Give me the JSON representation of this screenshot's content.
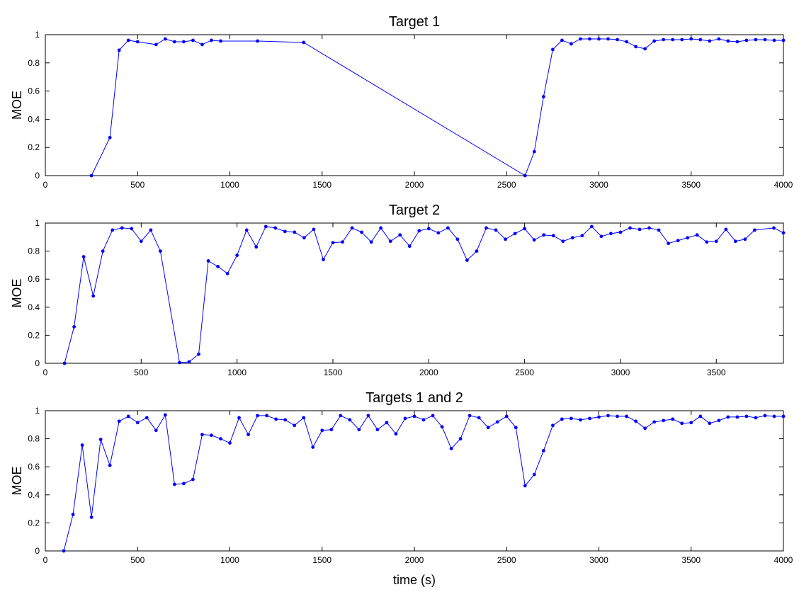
{
  "figure": {
    "xlabel": "time (s)"
  },
  "chart_data": [
    {
      "type": "line",
      "title": "Target 1",
      "ylabel": "MOE",
      "xlabel": "",
      "xlim": [
        0,
        4000
      ],
      "ylim": [
        0,
        1
      ],
      "xticks": [
        0,
        500,
        1000,
        1500,
        2000,
        2500,
        3000,
        3500,
        4000
      ],
      "yticks": [
        0,
        0.2,
        0.4,
        0.6,
        0.8,
        1
      ],
      "color": "#0000ff",
      "series": [
        {
          "x": [
            250,
            350,
            400,
            450,
            500,
            600,
            650,
            700,
            750,
            800,
            850,
            900,
            950,
            1150,
            1400,
            2600,
            2650,
            2700,
            2750,
            2800,
            2850,
            2900,
            2950,
            3000,
            3050,
            3100,
            3150,
            3200,
            3250,
            3300,
            3350,
            3400,
            3450,
            3500,
            3550,
            3600,
            3650,
            3700,
            3750,
            3800,
            3850,
            3900,
            3950,
            4000
          ],
          "y": [
            0.0,
            0.27,
            0.89,
            0.96,
            0.95,
            0.93,
            0.97,
            0.95,
            0.95,
            0.96,
            0.93,
            0.96,
            0.955,
            0.955,
            0.945,
            0.0,
            0.17,
            0.56,
            0.895,
            0.96,
            0.935,
            0.97,
            0.97,
            0.97,
            0.97,
            0.965,
            0.95,
            0.915,
            0.9,
            0.955,
            0.965,
            0.965,
            0.965,
            0.97,
            0.965,
            0.955,
            0.97,
            0.955,
            0.95,
            0.96,
            0.965,
            0.965,
            0.96,
            0.96
          ]
        }
      ]
    },
    {
      "type": "line",
      "title": "Target 2",
      "ylabel": "MOE",
      "xlabel": "",
      "xlim": [
        0,
        3850
      ],
      "ylim": [
        0,
        1
      ],
      "xticks": [
        0,
        500,
        1000,
        1500,
        2000,
        2500,
        3000,
        3500
      ],
      "yticks": [
        0,
        0.2,
        0.4,
        0.6,
        0.8,
        1
      ],
      "color": "#0000ff",
      "series": [
        {
          "x": [
            100,
            150,
            200,
            250,
            300,
            350,
            400,
            450,
            500,
            550,
            600,
            700,
            750,
            800,
            850,
            900,
            950,
            1000,
            1050,
            1100,
            1150,
            1200,
            1250,
            1300,
            1350,
            1400,
            1450,
            1500,
            1550,
            1600,
            1650,
            1700,
            1750,
            1800,
            1850,
            1900,
            1950,
            2000,
            2050,
            2100,
            2150,
            2200,
            2250,
            2300,
            2350,
            2400,
            2450,
            2500,
            2550,
            2600,
            2650,
            2700,
            2750,
            2800,
            2850,
            2900,
            2950,
            3000,
            3050,
            3100,
            3150,
            3200,
            3250,
            3300,
            3350,
            3400,
            3450,
            3500,
            3550,
            3600,
            3650,
            3700,
            3800,
            3850
          ],
          "y": [
            0.0,
            0.26,
            0.76,
            0.48,
            0.8,
            0.95,
            0.965,
            0.96,
            0.87,
            0.95,
            0.8,
            0.005,
            0.01,
            0.065,
            0.73,
            0.69,
            0.64,
            0.77,
            0.95,
            0.83,
            0.975,
            0.965,
            0.94,
            0.935,
            0.895,
            0.955,
            0.74,
            0.86,
            0.865,
            0.965,
            0.935,
            0.865,
            0.965,
            0.87,
            0.915,
            0.835,
            0.945,
            0.96,
            0.93,
            0.965,
            0.885,
            0.735,
            0.8,
            0.965,
            0.95,
            0.885,
            0.925,
            0.96,
            0.88,
            0.915,
            0.91,
            0.87,
            0.895,
            0.91,
            0.975,
            0.905,
            0.925,
            0.935,
            0.965,
            0.955,
            0.965,
            0.95,
            0.855,
            0.875,
            0.895,
            0.915,
            0.865,
            0.87,
            0.955,
            0.87,
            0.885,
            0.95,
            0.965,
            0.93
          ]
        }
      ]
    },
    {
      "type": "line",
      "title": "Targets 1 and 2",
      "ylabel": "MOE",
      "xlabel": "time (s)",
      "xlim": [
        0,
        4000
      ],
      "ylim": [
        0,
        1
      ],
      "xticks": [
        0,
        500,
        1000,
        1500,
        2000,
        2500,
        3000,
        3500,
        4000
      ],
      "yticks": [
        0,
        0.2,
        0.4,
        0.6,
        0.8,
        1
      ],
      "color": "#0000ff",
      "series": [
        {
          "x": [
            100,
            150,
            200,
            250,
            300,
            350,
            400,
            450,
            500,
            550,
            600,
            650,
            700,
            750,
            800,
            850,
            900,
            950,
            1000,
            1050,
            1100,
            1150,
            1200,
            1250,
            1300,
            1350,
            1400,
            1450,
            1500,
            1550,
            1600,
            1650,
            1700,
            1750,
            1800,
            1850,
            1900,
            1950,
            2000,
            2050,
            2100,
            2150,
            2200,
            2250,
            2300,
            2350,
            2400,
            2450,
            2500,
            2550,
            2600,
            2650,
            2700,
            2750,
            2800,
            2850,
            2900,
            2950,
            3000,
            3050,
            3100,
            3150,
            3200,
            3250,
            3300,
            3350,
            3400,
            3450,
            3500,
            3550,
            3600,
            3650,
            3700,
            3750,
            3800,
            3850,
            3900,
            3950,
            4000
          ],
          "y": [
            0.0,
            0.26,
            0.755,
            0.24,
            0.795,
            0.61,
            0.925,
            0.96,
            0.915,
            0.95,
            0.86,
            0.97,
            0.475,
            0.48,
            0.51,
            0.83,
            0.825,
            0.8,
            0.77,
            0.95,
            0.83,
            0.965,
            0.965,
            0.94,
            0.935,
            0.895,
            0.95,
            0.74,
            0.86,
            0.865,
            0.965,
            0.935,
            0.865,
            0.965,
            0.865,
            0.915,
            0.835,
            0.945,
            0.96,
            0.935,
            0.965,
            0.885,
            0.73,
            0.8,
            0.965,
            0.95,
            0.88,
            0.92,
            0.96,
            0.88,
            0.465,
            0.545,
            0.715,
            0.895,
            0.94,
            0.945,
            0.935,
            0.945,
            0.955,
            0.965,
            0.96,
            0.96,
            0.925,
            0.875,
            0.92,
            0.93,
            0.94,
            0.91,
            0.915,
            0.96,
            0.91,
            0.93,
            0.955,
            0.955,
            0.96,
            0.95,
            0.965,
            0.96,
            0.96
          ]
        }
      ]
    }
  ]
}
